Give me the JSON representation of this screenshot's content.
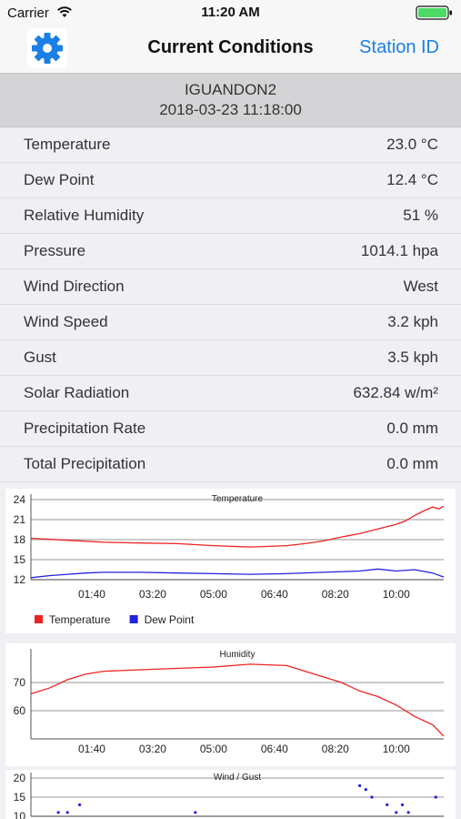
{
  "status": {
    "carrier": "Carrier",
    "time": "11:20 AM"
  },
  "nav": {
    "title": "Current Conditions",
    "right_button": "Station ID",
    "gear_icon": "gear-icon"
  },
  "station": {
    "id": "IGUANDON2",
    "timestamp": "2018-03-23 11:18:00"
  },
  "readings": [
    {
      "label": "Temperature",
      "value": "23.0 °C"
    },
    {
      "label": "Dew Point",
      "value": "12.4 °C"
    },
    {
      "label": "Relative Humidity",
      "value": "51 %"
    },
    {
      "label": "Pressure",
      "value": "1014.1 hpa"
    },
    {
      "label": "Wind Direction",
      "value": "West"
    },
    {
      "label": "Wind Speed",
      "value": "3.2 kph"
    },
    {
      "label": "Gust",
      "value": "3.5 kph"
    },
    {
      "label": "Solar Radiation",
      "value": "632.84 w/m²"
    },
    {
      "label": "Precipitation Rate",
      "value": "0.0 mm"
    },
    {
      "label": "Total Precipitation",
      "value": "0.0 mm"
    }
  ],
  "colors": {
    "accent": "#1a7fe6",
    "temperature": "#ee2222",
    "dew_point": "#2222dd",
    "humidity": "#ee2222",
    "wind": "#2222dd",
    "gust_fill": "#c8f0f8"
  },
  "chart_data": [
    {
      "type": "line",
      "title": "Temperature",
      "x_ticks": [
        "01:40",
        "03:20",
        "05:00",
        "06:40",
        "08:20",
        "10:00"
      ],
      "x_range": [
        "00:00",
        "11:18"
      ],
      "ylim": [
        12,
        24
      ],
      "y_ticks": [
        12,
        15,
        18,
        21,
        24
      ],
      "grid": true,
      "legend": "bottom-left",
      "series": [
        {
          "name": "Temperature",
          "color": "#ee2222",
          "x": [
            "00:00",
            "01:00",
            "02:00",
            "03:00",
            "04:00",
            "05:00",
            "06:00",
            "07:00",
            "07:30",
            "08:00",
            "08:30",
            "09:00",
            "09:30",
            "10:00",
            "10:15",
            "10:30",
            "10:45",
            "11:00",
            "11:10",
            "11:18"
          ],
          "values": [
            18.2,
            17.9,
            17.6,
            17.5,
            17.4,
            17.1,
            16.9,
            17.1,
            17.4,
            17.8,
            18.4,
            18.9,
            19.6,
            20.3,
            20.8,
            21.6,
            22.3,
            22.9,
            22.6,
            23.0
          ]
        },
        {
          "name": "Dew Point",
          "color": "#2222dd",
          "x": [
            "00:00",
            "00:30",
            "01:00",
            "01:30",
            "02:00",
            "03:00",
            "04:00",
            "05:00",
            "06:00",
            "07:00",
            "08:00",
            "09:00",
            "09:30",
            "10:00",
            "10:30",
            "11:00",
            "11:18"
          ],
          "values": [
            12.3,
            12.6,
            12.8,
            13.0,
            13.1,
            13.1,
            13.0,
            12.9,
            12.8,
            12.9,
            13.1,
            13.3,
            13.6,
            13.3,
            13.5,
            13.0,
            12.4
          ]
        }
      ]
    },
    {
      "type": "line",
      "title": "Humidity",
      "x_ticks": [
        "01:40",
        "03:20",
        "05:00",
        "06:40",
        "08:20",
        "10:00"
      ],
      "x_range": [
        "00:00",
        "11:18"
      ],
      "ylim": [
        50,
        80
      ],
      "y_ticks": [
        60,
        70
      ],
      "grid": true,
      "series": [
        {
          "name": "Humidity",
          "color": "#ee2222",
          "x": [
            "00:00",
            "00:30",
            "01:00",
            "01:30",
            "02:00",
            "03:00",
            "04:00",
            "05:00",
            "06:00",
            "07:00",
            "07:30",
            "08:00",
            "08:30",
            "09:00",
            "09:30",
            "10:00",
            "10:30",
            "11:00",
            "11:18"
          ],
          "values": [
            66,
            68,
            71,
            73,
            74,
            74.5,
            75,
            75.5,
            76.5,
            76,
            74,
            72,
            70,
            67,
            65,
            62,
            58,
            55,
            51
          ]
        }
      ]
    },
    {
      "type": "scatter",
      "title": "Wind / Gust",
      "x_range": [
        "00:00",
        "11:18"
      ],
      "ylim": [
        10,
        20
      ],
      "y_ticks": [
        10,
        15,
        20
      ],
      "grid": true,
      "series": [
        {
          "name": "Wind",
          "color": "#2222dd",
          "x": [
            "00:45",
            "01:00",
            "01:20",
            "04:30",
            "09:00",
            "09:10",
            "09:20",
            "09:45",
            "10:00",
            "10:10",
            "10:20",
            "11:05"
          ],
          "values": [
            11,
            11,
            13,
            11,
            18,
            17,
            15,
            13,
            11,
            13,
            11,
            15
          ]
        }
      ]
    }
  ]
}
